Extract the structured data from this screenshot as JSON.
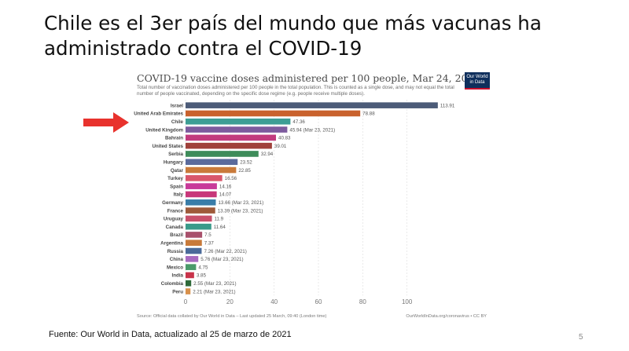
{
  "slide": {
    "title": "Chile es el 3er país del mundo que más vacunas ha administrado contra el COVID-19",
    "source_note": "Fuente: Our World in Data, actualizado al 25 de marzo de 2021",
    "page_number": "5"
  },
  "logo_text": "Our World in Data",
  "colors": {
    "arrow": "#e8322d",
    "grid": "#dcdcdc",
    "logo_bg": "#0f2f5c",
    "logo_accent": "#c8102e"
  },
  "chart_data": {
    "type": "bar",
    "orientation": "horizontal",
    "title": "COVID-19 vaccine doses administered per 100 people, Mar 24, 2021",
    "subtitle": "Total number of vaccination doses administered per 100 people in the total population. This is counted as a single dose, and may not equal the total number of people vaccinated, depending on the specific dose regime (e.g. people receive multiple doses).",
    "source": "Source: Official data collated by Our World in Data – Last updated 25 March, 09:40 (London time)",
    "license": "OurWorldInData.org/coronavirus • CC BY",
    "xlim": [
      0,
      120
    ],
    "xticks": [
      0,
      20,
      40,
      60,
      80,
      100
    ],
    "grid": true,
    "categories": [
      "Israel",
      "United Arab Emirates",
      "Chile",
      "United Kingdom",
      "Bahrain",
      "United States",
      "Serbia",
      "Hungary",
      "Qatar",
      "Turkey",
      "Spain",
      "Italy",
      "Germany",
      "France",
      "Uruguay",
      "Canada",
      "Brazil",
      "Argentina",
      "Russia",
      "China",
      "Mexico",
      "India",
      "Colombia",
      "Peru"
    ],
    "values": [
      113.91,
      78.88,
      47.36,
      45.94,
      40.83,
      39.01,
      32.94,
      23.52,
      22.85,
      16.56,
      14.16,
      14.07,
      13.66,
      13.39,
      11.9,
      11.64,
      7.5,
      7.37,
      7.26,
      5.76,
      4.75,
      3.85,
      2.55,
      2.21
    ],
    "value_labels": [
      "113.91",
      "78.88",
      "47.36",
      "45.94 (Mar 23, 2021)",
      "40.83",
      "39.01",
      "32.94",
      "23.52",
      "22.85",
      "16.56",
      "14.16",
      "14.07",
      "13.66 (Mar 23, 2021)",
      "13.39 (Mar 23, 2021)",
      "11.9",
      "11.64",
      "7.5",
      "7.37",
      "7.26 (Mar 22, 2021)",
      "5.76 (Mar 23, 2021)",
      "4.75",
      "3.85",
      "2.55 (Mar 23, 2021)",
      "2.21 (Mar 23, 2021)"
    ],
    "bar_colors": [
      "#4c5b78",
      "#c9622d",
      "#3d9e95",
      "#7d5b9e",
      "#c23b7e",
      "#a0413b",
      "#3e8c5a",
      "#5a6a9c",
      "#c97a3a",
      "#d9566b",
      "#c83a9a",
      "#c8377a",
      "#3a7da8",
      "#9e5a3a",
      "#c8506b",
      "#3a9a8a",
      "#a8506b",
      "#c87a3a",
      "#4a6a9a",
      "#a86ac0",
      "#4a9a6a",
      "#c8334a",
      "#2f6a3a",
      "#d8904a"
    ]
  }
}
